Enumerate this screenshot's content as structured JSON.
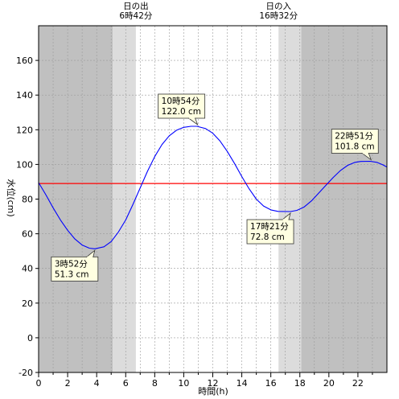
{
  "chart_data": {
    "type": "line",
    "xlabel": "時間(h)",
    "ylabel": "水位(cm)",
    "xlim": [
      0,
      24
    ],
    "ylim": [
      -20,
      180
    ],
    "x_ticks": [
      0,
      2,
      4,
      6,
      8,
      10,
      12,
      14,
      16,
      18,
      20,
      22
    ],
    "y_ticks": [
      -20,
      0,
      20,
      40,
      60,
      80,
      100,
      120,
      140,
      160
    ],
    "grid": true,
    "series": [
      {
        "color": "#0000ff",
        "points": [
          [
            0,
            89.5
          ],
          [
            0.5,
            82.5
          ],
          [
            1,
            75.0
          ],
          [
            1.5,
            68.0
          ],
          [
            2,
            62.0
          ],
          [
            2.5,
            57.0
          ],
          [
            3,
            53.5
          ],
          [
            3.5,
            51.7
          ],
          [
            3.87,
            51.3
          ],
          [
            4.5,
            52.5
          ],
          [
            5,
            55.5
          ],
          [
            5.5,
            61.0
          ],
          [
            6,
            68.0
          ],
          [
            6.5,
            77.0
          ],
          [
            7,
            86.5
          ],
          [
            7.5,
            96.0
          ],
          [
            8,
            104.5
          ],
          [
            8.5,
            111.5
          ],
          [
            9,
            116.5
          ],
          [
            9.5,
            119.7
          ],
          [
            10,
            121.4
          ],
          [
            10.5,
            122.0
          ],
          [
            10.9,
            122.0
          ],
          [
            11.5,
            120.7
          ],
          [
            12,
            118.0
          ],
          [
            12.5,
            113.5
          ],
          [
            13,
            107.5
          ],
          [
            13.5,
            100.5
          ],
          [
            14,
            93.0
          ],
          [
            14.5,
            86.0
          ],
          [
            15,
            80.0
          ],
          [
            15.5,
            76.0
          ],
          [
            16,
            73.8
          ],
          [
            16.5,
            72.9
          ],
          [
            17.35,
            72.8
          ],
          [
            17.8,
            73.5
          ],
          [
            18.3,
            75.5
          ],
          [
            18.8,
            79.0
          ],
          [
            19.3,
            83.5
          ],
          [
            19.8,
            88.0
          ],
          [
            20.3,
            92.5
          ],
          [
            20.8,
            96.5
          ],
          [
            21.3,
            99.5
          ],
          [
            21.8,
            101.2
          ],
          [
            22.2,
            101.7
          ],
          [
            22.85,
            101.8
          ],
          [
            23.3,
            101.2
          ],
          [
            23.7,
            99.8
          ],
          [
            24,
            98.5
          ]
        ]
      }
    ],
    "reference_line": {
      "y": 89,
      "color": "#ff0000"
    },
    "daylight": {
      "sunrise_hour": 6.7,
      "sunset_hour": 16.53,
      "twilight_start": 5.1,
      "twilight_end": 18.1
    },
    "sun_labels": [
      {
        "hour": 6.7,
        "line1": "日の出",
        "line2": "6時42分"
      },
      {
        "hour": 16.53,
        "line1": "日の入",
        "line2": "16時32分"
      }
    ],
    "annotations": [
      {
        "x": 3.87,
        "y": 51.3,
        "time": "3時52分",
        "value": "51.3 cm",
        "placement": "below"
      },
      {
        "x": 10.9,
        "y": 122.0,
        "time": "10時54分",
        "value": "122.0 cm",
        "placement": "above"
      },
      {
        "x": 17.35,
        "y": 72.8,
        "time": "17時21分",
        "value": "72.8 cm",
        "placement": "below"
      },
      {
        "x": 22.85,
        "y": 101.8,
        "time": "22時51分",
        "value": "101.8 cm",
        "placement": "above"
      }
    ]
  }
}
